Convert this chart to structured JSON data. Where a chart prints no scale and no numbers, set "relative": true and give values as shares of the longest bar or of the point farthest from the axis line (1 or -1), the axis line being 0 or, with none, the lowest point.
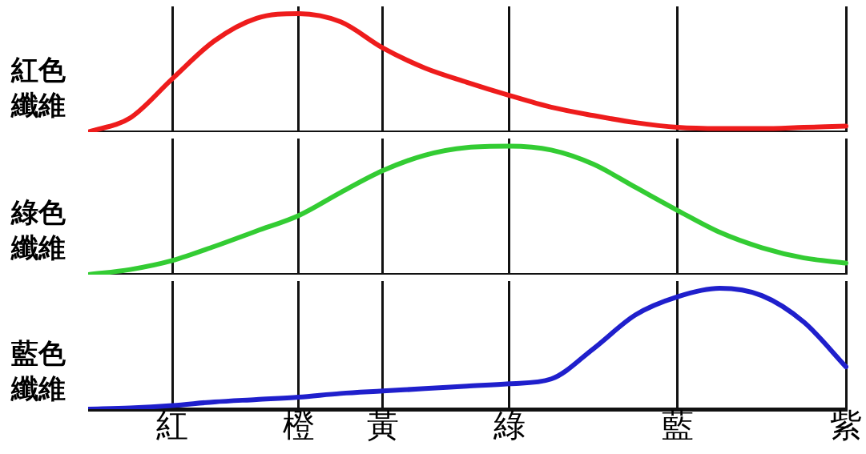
{
  "chart_data": [
    {
      "type": "line",
      "relative": true,
      "ylabel": "紅色纖維",
      "categories": [
        null,
        null,
        null,
        null,
        null,
        null,
        null,
        null,
        null,
        null,
        null,
        null,
        null,
        null,
        null,
        null,
        null,
        null,
        null
      ],
      "series": [
        {
          "color": "#ee1c1c",
          "values": [
            0,
            0.12,
            0.45,
            0.77,
            0.96,
            1,
            0.93,
            0.71,
            0.54,
            0.42,
            0.31,
            0.21,
            0.14,
            0.08,
            0.04,
            0.03,
            0.03,
            0.04,
            0.05
          ]
        }
      ],
      "grid": "x",
      "tick_labels": false
    },
    {
      "type": "line",
      "relative": true,
      "ylabel": "綠色纖維",
      "categories": [
        null,
        null,
        null,
        null,
        null,
        null,
        null,
        null,
        null,
        null,
        null,
        null,
        null,
        null,
        null,
        null,
        null,
        null,
        null
      ],
      "series": [
        {
          "color": "#33cc33",
          "values": [
            0,
            0.04,
            0.11,
            0.22,
            0.34,
            0.46,
            0.64,
            0.81,
            0.93,
            0.99,
            1,
            0.97,
            0.86,
            0.68,
            0.5,
            0.33,
            0.21,
            0.13,
            0.09
          ]
        }
      ],
      "grid": "x",
      "tick_labels": false
    },
    {
      "type": "line",
      "relative": true,
      "ylabel": "藍色纖維",
      "categories": [
        null,
        null,
        "紅",
        null,
        null,
        "橙",
        null,
        "黃",
        null,
        null,
        "綠",
        null,
        null,
        null,
        "藍",
        null,
        null,
        null,
        "紫"
      ],
      "series": [
        {
          "color": "#1f1fcc",
          "values": [
            0,
            0.01,
            0.03,
            0.06,
            0.08,
            0.1,
            0.13,
            0.15,
            0.17,
            0.19,
            0.21,
            0.25,
            0.5,
            0.78,
            0.93,
            1,
            0.94,
            0.72,
            0.35
          ]
        }
      ],
      "grid": "x",
      "tick_labels": "x"
    }
  ]
}
